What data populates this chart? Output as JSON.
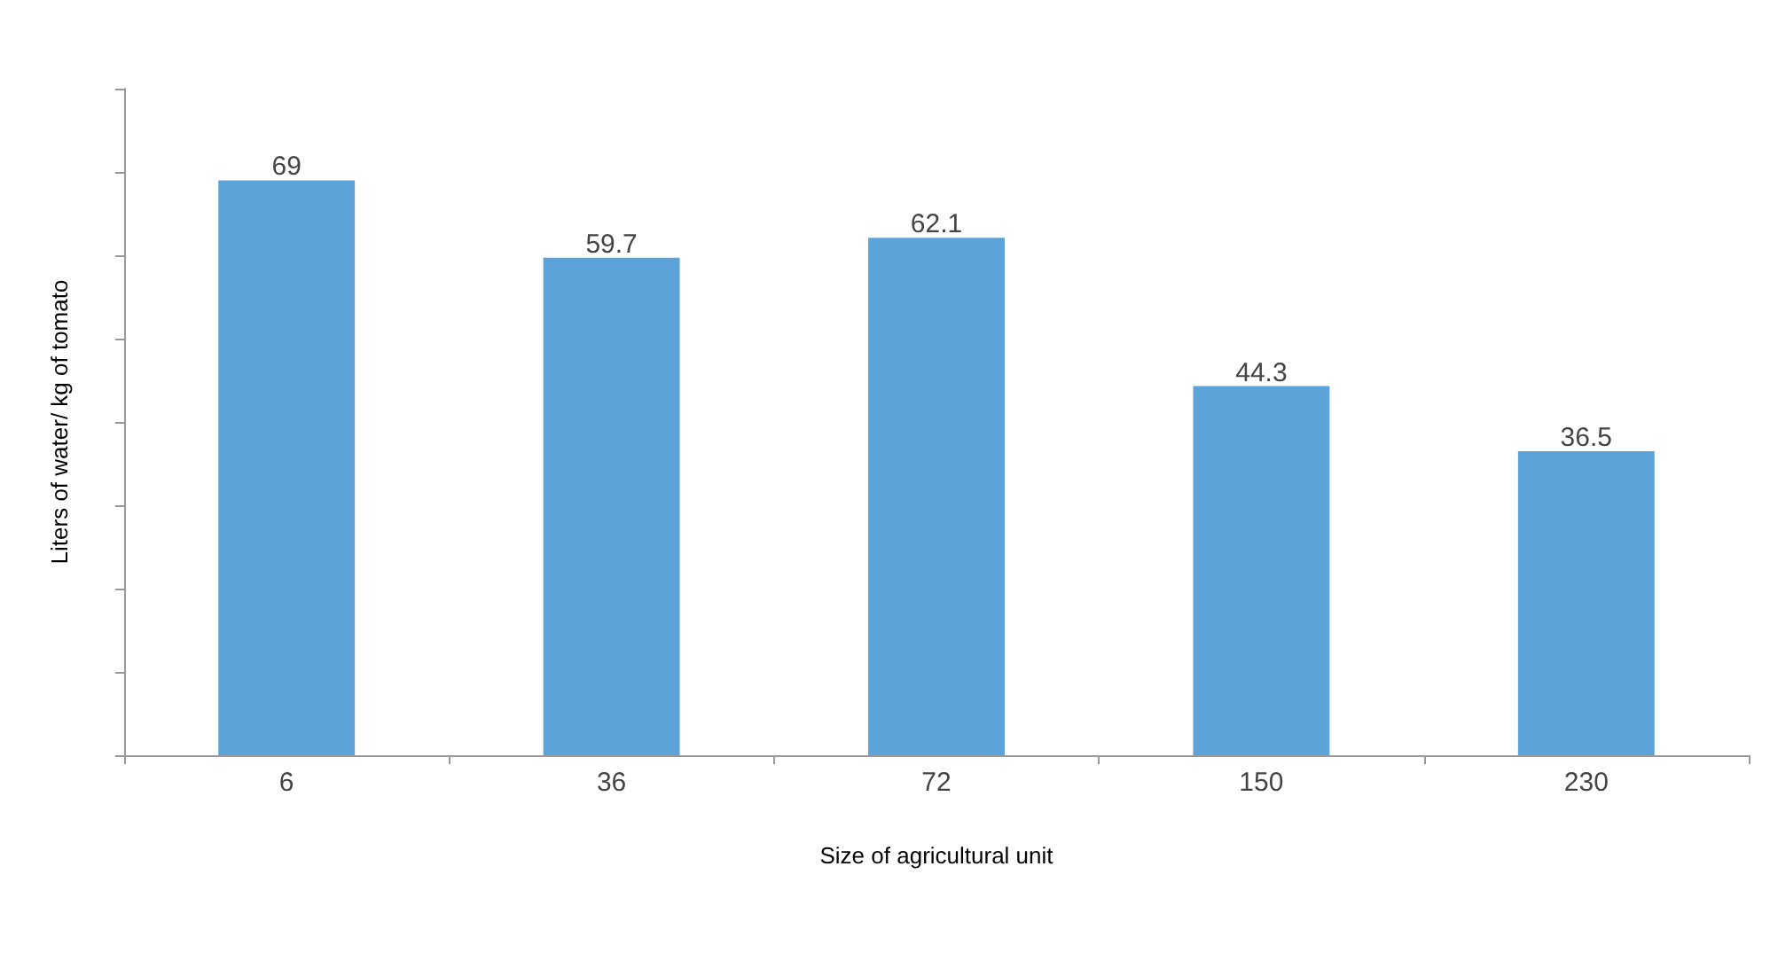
{
  "chart_data": {
    "type": "bar",
    "xlabel": "Size of agricultural unit",
    "ylabel": "Liters of water/ kg of tomato",
    "categories": [
      "6",
      "36",
      "72",
      "150",
      "230"
    ],
    "values": [
      69,
      59.7,
      62.1,
      44.3,
      36.5
    ],
    "color": "#5ba3d9",
    "ylim": [
      0,
      80
    ],
    "yticks": [
      {
        "value": 0,
        "label": null
      },
      {
        "value": 10,
        "label": null
      },
      {
        "value": 20,
        "label": null
      },
      {
        "value": 30,
        "label": null
      },
      {
        "value": 40,
        "label": null
      },
      {
        "value": 50,
        "label": null
      },
      {
        "value": 60,
        "label": null
      },
      {
        "value": 70,
        "label": null
      },
      {
        "value": 80,
        "label": null
      }
    ],
    "tick_labels": "x",
    "data_labels": true,
    "grid": false
  }
}
